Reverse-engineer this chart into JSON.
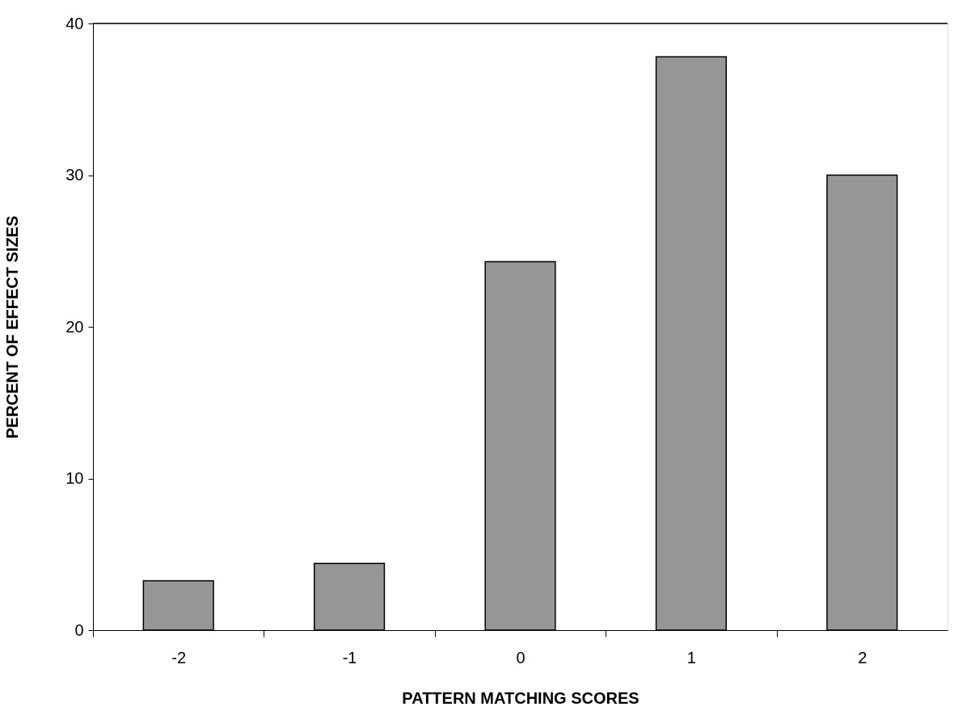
{
  "chart_data": {
    "type": "bar",
    "xlabel": "PATTERN MATCHING SCORES",
    "ylabel": "PERCENT OF EFFECT SIZES",
    "categories": [
      "-2",
      "-1",
      "0",
      "1",
      "2"
    ],
    "series": [
      {
        "color": "#969696",
        "values": [
          3.25,
          4.4,
          24.3,
          37.8,
          30.0
        ]
      }
    ],
    "ylim": [
      0,
      40
    ],
    "yticks": [
      0,
      10,
      20,
      30,
      40
    ],
    "grid": false
  }
}
